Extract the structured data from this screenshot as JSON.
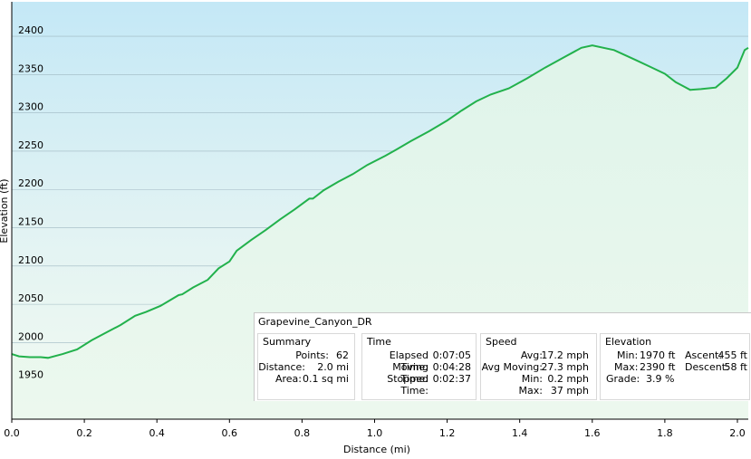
{
  "chart_data": {
    "type": "area",
    "xlabel": "Distance  (mi)",
    "ylabel": "Elevation (ft)",
    "xlim": [
      0,
      2.03
    ],
    "ylim": [
      1900,
      2445
    ],
    "x_ticks": [
      "0.0",
      "0.2",
      "0.4",
      "0.6",
      "0.8",
      "1.0",
      "1.2",
      "1.4",
      "1.6",
      "1.8",
      "2.0"
    ],
    "y_ticks": [
      "1950",
      "2000",
      "2050",
      "2100",
      "2150",
      "2200",
      "2250",
      "2300",
      "2350",
      "2400"
    ],
    "grid": "horizontal",
    "series": [
      {
        "color": "#22b14c",
        "x": [
          0.0,
          0.02,
          0.05,
          0.08,
          0.1,
          0.14,
          0.18,
          0.22,
          0.26,
          0.3,
          0.34,
          0.37,
          0.41,
          0.46,
          0.47,
          0.5,
          0.54,
          0.57,
          0.6,
          0.62,
          0.66,
          0.7,
          0.74,
          0.78,
          0.82,
          0.83,
          0.86,
          0.9,
          0.94,
          0.98,
          1.03,
          1.06,
          1.1,
          1.15,
          1.2,
          1.24,
          1.28,
          1.32,
          1.37,
          1.42,
          1.47,
          1.52,
          1.57,
          1.6,
          1.66,
          1.72,
          1.76,
          1.8,
          1.83,
          1.85,
          1.87,
          1.9,
          1.94,
          1.97,
          2.0,
          2.02,
          2.03
        ],
        "y": [
          1985,
          1982,
          1981,
          1981,
          1980,
          1985,
          1991,
          2003,
          2013,
          2023,
          2035,
          2040,
          2048,
          2062,
          2063,
          2072,
          2082,
          2097,
          2106,
          2120,
          2134,
          2147,
          2161,
          2174,
          2188,
          2188,
          2199,
          2210,
          2220,
          2232,
          2244,
          2252,
          2263,
          2276,
          2290,
          2303,
          2315,
          2324,
          2332,
          2345,
          2359,
          2372,
          2385,
          2388,
          2382,
          2369,
          2360,
          2351,
          2340,
          2335,
          2330,
          2331,
          2333,
          2345,
          2359,
          2382,
          2385
        ]
      }
    ]
  },
  "info": {
    "title": "Grapevine_Canyon_DR",
    "summary": {
      "title": "Summary",
      "points_label": "Points:",
      "points": "62",
      "distance_label": "Distance:",
      "distance": "2.0 mi",
      "area_label": "Area:",
      "area": "0.1 sq mi"
    },
    "time": {
      "title": "Time",
      "elapsed_label": "Elapsed Time:",
      "elapsed": "0:07:05",
      "moving_label": "Moving Time:",
      "moving": "0:04:28",
      "stopped_label": "Stopped Time:",
      "stopped": "0:02:37"
    },
    "speed": {
      "title": "Speed",
      "avg_label": "Avg:",
      "avg": "17.2 mph",
      "avg_moving_label": "Avg Moving:",
      "avg_moving": "27.3 mph",
      "min_label": "Min:",
      "min": "0.2 mph",
      "max_label": "Max:",
      "max": "37 mph"
    },
    "elevation": {
      "title": "Elevation",
      "min_label": "Min:",
      "min": "1970 ft",
      "max_label": "Max:",
      "max": "2390 ft",
      "grade_label": "Grade:",
      "grade": "3.9 %",
      "ascent_label": "Ascent:",
      "ascent": "455 ft",
      "descent_label": "Descent:",
      "descent": "58 ft"
    }
  }
}
